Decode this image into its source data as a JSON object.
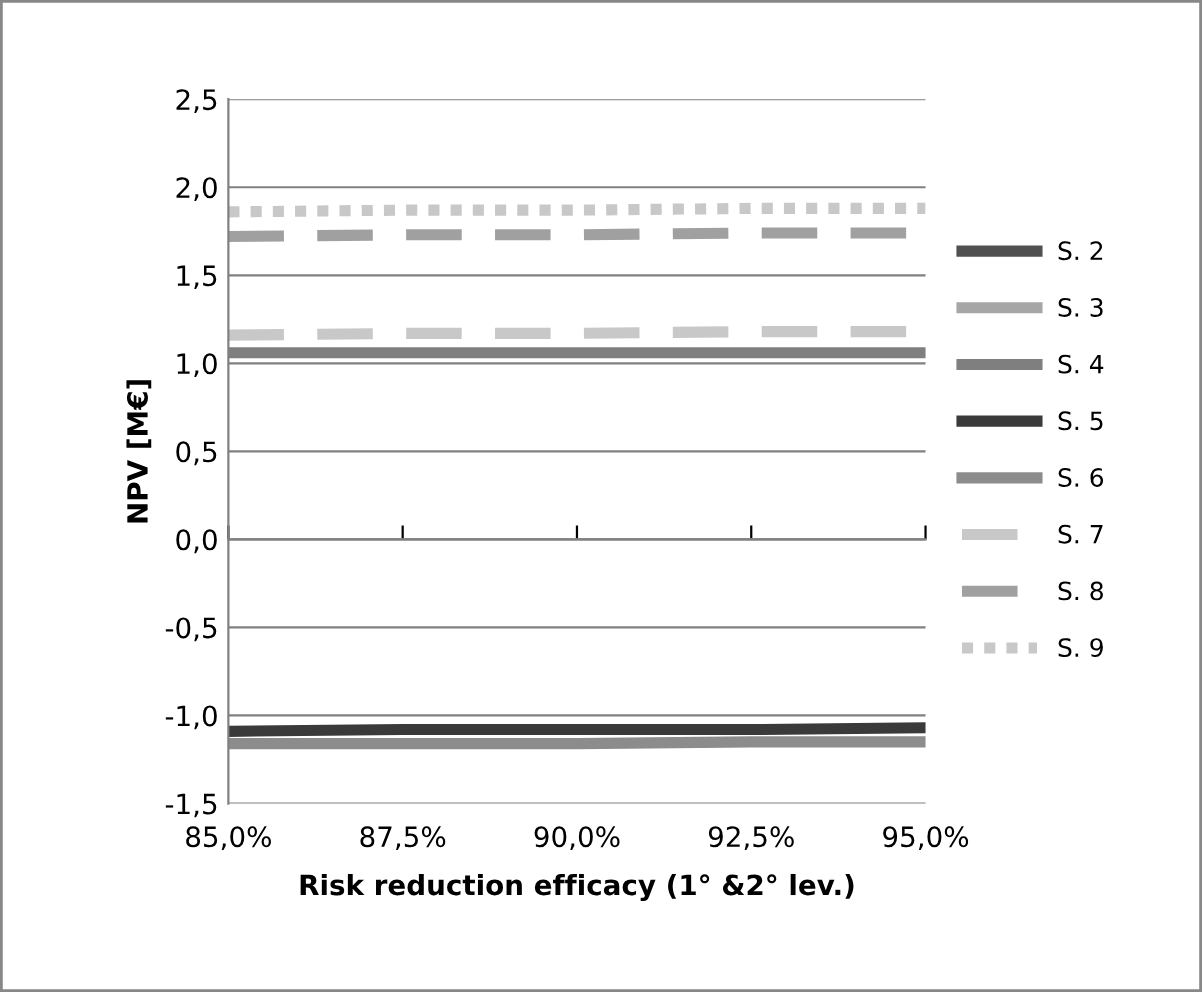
{
  "chart_data": {
    "type": "line",
    "xlabel": "Risk reduction efficacy (1° &2° lev.)",
    "ylabel": "NPV [M€]",
    "categories": [
      "85,0%",
      "87,5%",
      "90,0%",
      "92,5%",
      "95,0%"
    ],
    "ylim": [
      -1.5,
      2.5
    ],
    "yticks": [
      {
        "value": -1.5,
        "label": "-1,5"
      },
      {
        "value": -1.0,
        "label": "-1,0"
      },
      {
        "value": -0.5,
        "label": "-0,5"
      },
      {
        "value": 0,
        "label": "0,0"
      },
      {
        "value": 0.5,
        "label": "0,5"
      },
      {
        "value": 1.0,
        "label": "1,0"
      },
      {
        "value": 1.5,
        "label": "1,5"
      },
      {
        "value": 2.0,
        "label": "2,0"
      },
      {
        "value": 2.5,
        "label": "2,5"
      }
    ],
    "grid": "y",
    "legend": "right",
    "series": [
      {
        "name": "S. 2",
        "color": "#505050",
        "line_style": "solid",
        "values": [
          null,
          null,
          null,
          null,
          null
        ]
      },
      {
        "name": "S. 3",
        "color": "#a6a6a6",
        "line_style": "solid",
        "values": [
          null,
          null,
          null,
          null,
          null
        ]
      },
      {
        "name": "S. 4",
        "color": "#7f7f7f",
        "line_style": "solid",
        "values": [
          1.06,
          1.06,
          1.06,
          1.06,
          1.06
        ]
      },
      {
        "name": "S. 5",
        "color": "#3a3a3a",
        "line_style": "solid",
        "values": [
          -1.09,
          -1.08,
          -1.08,
          -1.08,
          -1.07
        ]
      },
      {
        "name": "S. 6",
        "color": "#8c8c8c",
        "line_style": "solid",
        "values": [
          -1.16,
          -1.16,
          -1.16,
          -1.15,
          -1.15
        ]
      },
      {
        "name": "S. 7",
        "color": "#c8c8c8",
        "line_style": "dashed",
        "values": [
          1.16,
          1.17,
          1.17,
          1.18,
          1.18
        ]
      },
      {
        "name": "S. 8",
        "color": "#a0a0a0",
        "line_style": "dashed",
        "values": [
          1.72,
          1.73,
          1.73,
          1.74,
          1.74
        ]
      },
      {
        "name": "S. 9",
        "color": "#c8c8c8",
        "line_style": "dotted",
        "values": [
          1.86,
          1.87,
          1.87,
          1.88,
          1.88
        ]
      }
    ]
  }
}
